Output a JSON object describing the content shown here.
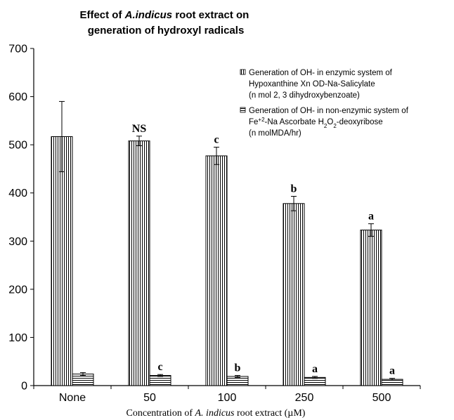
{
  "colors": {
    "axis": "#000000",
    "bar_fill": "#ffffff",
    "bar_stroke": "#000000",
    "hatch": "#000000"
  },
  "chart_data": {
    "type": "bar",
    "title_parts": [
      {
        "text": "Effect of ",
        "italic": false
      },
      {
        "text": "A.indicus",
        "italic": true
      },
      {
        "text": " root extract on",
        "italic": false
      }
    ],
    "title_line2": "generation of hydroxyl radicals",
    "xlabel_parts": [
      {
        "text": "Concentration of ",
        "italic": false
      },
      {
        "text": "A. indicus",
        "italic": true
      },
      {
        "text": " root extract (µM)",
        "italic": false
      }
    ],
    "ylabel": "",
    "ylim": [
      0,
      700
    ],
    "yticks": [
      0,
      100,
      200,
      300,
      400,
      500,
      600,
      700
    ],
    "categories": [
      "None",
      "50",
      "100",
      "250",
      "500"
    ],
    "legend_position": "top-right",
    "series": [
      {
        "name": "Generation of OH- in enzymic system of Hypoxanthine Xn OD-Na-Salicylate (n mol 2, 3 dihydroxybenzoate)",
        "legend_lines": [
          [
            {
              "text": "Generation of OH- in enzymic system of"
            }
          ],
          [
            {
              "text": "Hypoxanthine Xn OD-Na-Salicylate"
            }
          ],
          [
            {
              "text": "(n mol 2, 3 dihydroxybenzoate)"
            }
          ]
        ],
        "pattern": "vertical",
        "values": [
          517,
          508,
          477,
          378,
          323
        ],
        "errors": [
          73,
          10,
          18,
          15,
          13
        ],
        "labels": [
          "",
          "NS",
          "c",
          "b",
          "a"
        ]
      },
      {
        "name": "Generation of OH- in non-enzymic system of Fe+2-Na Ascorbate H2O2-deoxyribose (n molMDA/hr)",
        "legend_lines": [
          [
            {
              "text": "Generation of OH- in non-enzymic system of"
            }
          ],
          [
            {
              "text": "Fe"
            },
            {
              "text": "+2",
              "sup": true
            },
            {
              "text": "-Na Ascorbate H"
            },
            {
              "text": "2",
              "sub": true
            },
            {
              "text": "O"
            },
            {
              "text": "2",
              "sub": true
            },
            {
              "text": "-deoxyribose"
            }
          ],
          [
            {
              "text": "(n molMDA/hr)"
            }
          ]
        ],
        "pattern": "horizontal",
        "values": [
          24,
          21,
          19,
          17,
          13
        ],
        "errors": [
          3,
          2,
          2,
          2,
          2
        ],
        "labels": [
          "",
          "c",
          "b",
          "a",
          "a"
        ]
      }
    ]
  }
}
